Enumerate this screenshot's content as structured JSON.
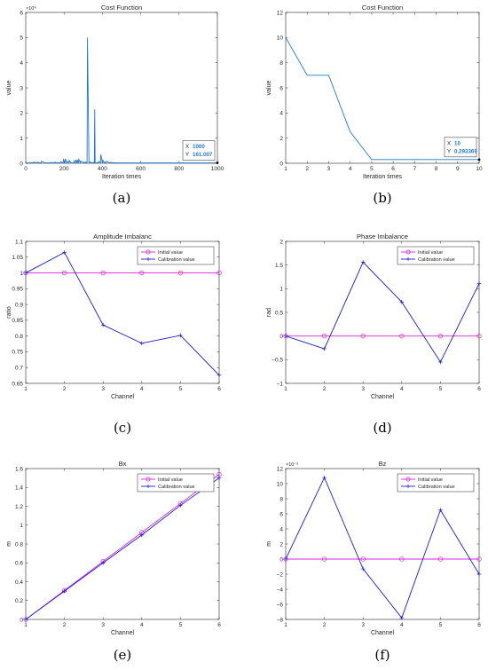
{
  "chart_data": [
    {
      "panel": "(a)",
      "type": "line",
      "title": "Cost Function",
      "xlabel": "Iteration times",
      "ylabel": "value",
      "xlim": [
        0,
        1000
      ],
      "ylim": [
        0,
        60000
      ],
      "y_exponent_label": "×10⁴",
      "xticks": [
        0,
        200,
        400,
        600,
        800,
        1000
      ],
      "yticks": [
        0,
        10000,
        20000,
        30000,
        40000,
        50000,
        60000
      ],
      "ytick_labels": [
        "0",
        "1",
        "2",
        "3",
        "4",
        "5",
        "6"
      ],
      "series": [
        {
          "color": "#1f77d4",
          "x": [
            0,
            20,
            22,
            40,
            42,
            60,
            62,
            80,
            82,
            100,
            102,
            130,
            132,
            150,
            152,
            160,
            162,
            180,
            182,
            195,
            197,
            205,
            207,
            215,
            217,
            225,
            227,
            235,
            240,
            250,
            252,
            260,
            262,
            268,
            270,
            275,
            277,
            285,
            287,
            305,
            307,
            310,
            312,
            320,
            322,
            330,
            332,
            340,
            342,
            350,
            352,
            358,
            360,
            362,
            364,
            370,
            372,
            380,
            382,
            390,
            392,
            400,
            402,
            410,
            412,
            420,
            422,
            440,
            442,
            460,
            462,
            500,
            520,
            540,
            600,
            700,
            800,
            900,
            1000
          ],
          "y": [
            161,
            161,
            300,
            161,
            500,
            161,
            400,
            161,
            800,
            161,
            200,
            161,
            300,
            161,
            500,
            161,
            250,
            161,
            600,
            161,
            1500,
            161,
            1800,
            161,
            700,
            161,
            1200,
            161,
            161,
            161,
            1000,
            161,
            1400,
            161,
            1100,
            161,
            1600,
            161,
            900,
            161,
            400,
            161,
            500,
            161,
            50000,
            161,
            600,
            161,
            400,
            161,
            300,
            161,
            21500,
            161,
            161,
            161,
            300,
            161,
            700,
            161,
            3500,
            161,
            1200,
            161,
            500,
            161,
            800,
            161,
            300,
            161,
            200,
            161,
            161,
            161,
            161,
            161,
            161,
            161,
            161
          ]
        }
      ],
      "datatip": {
        "x_label": "X",
        "x_value": "1000",
        "y_label": "Y",
        "y_value": "161.007"
      }
    },
    {
      "panel": "(b)",
      "type": "line",
      "title": "Cost Function",
      "xlabel": "Iteration times",
      "ylabel": "value",
      "xlim": [
        1,
        10
      ],
      "ylim": [
        0,
        12
      ],
      "xticks": [
        1,
        2,
        3,
        4,
        5,
        6,
        7,
        8,
        9,
        10
      ],
      "yticks": [
        0,
        2,
        4,
        6,
        8,
        10,
        12
      ],
      "series": [
        {
          "color": "#1f77d4",
          "x": [
            1,
            2,
            3,
            4,
            5,
            6,
            7,
            8,
            9,
            10
          ],
          "y": [
            10,
            7,
            7,
            2.5,
            0.293369,
            0.293369,
            0.293369,
            0.293369,
            0.293369,
            0.293369
          ]
        }
      ],
      "datatip": {
        "x_label": "X",
        "x_value": "10",
        "y_label": "Y",
        "y_value": "0.293369"
      }
    },
    {
      "panel": "(c)",
      "type": "line",
      "title": "Amplitude Imbalanc",
      "xlabel": "Channel",
      "ylabel": "ratio",
      "xlim": [
        1,
        6
      ],
      "ylim": [
        0.65,
        1.1
      ],
      "xticks": [
        1,
        2,
        3,
        4,
        5,
        6
      ],
      "yticks": [
        0.65,
        0.7,
        0.75,
        0.8,
        0.85,
        0.9,
        0.95,
        1,
        1.05,
        1.1
      ],
      "ytick_labels": [
        "0.65",
        "0.7",
        "0.75",
        "0.8",
        "0.85",
        "0.9",
        "0.95",
        "1",
        "1.05",
        "1.1"
      ],
      "legend": {
        "position": "top-right"
      },
      "categories": [
        1,
        2,
        3,
        4,
        5,
        6
      ],
      "series": [
        {
          "name": "Initial value",
          "color": "#e020e0",
          "marker": "circle",
          "values": [
            1,
            1,
            1,
            1,
            1,
            1
          ]
        },
        {
          "name": "Calibration value",
          "color": "#1a1ad6",
          "marker": "plus",
          "values": [
            1,
            1.065,
            0.835,
            0.777,
            0.802,
            0.676
          ]
        }
      ]
    },
    {
      "panel": "(d)",
      "type": "line",
      "title": "Phase Imbalance",
      "xlabel": "Channel",
      "ylabel": "rad",
      "xlim": [
        1,
        6
      ],
      "ylim": [
        -1,
        2
      ],
      "xticks": [
        1,
        2,
        3,
        4,
        5,
        6
      ],
      "yticks": [
        -1,
        -0.5,
        0,
        0.5,
        1,
        1.5,
        2
      ],
      "ytick_labels": [
        "−1",
        "−0.5",
        "0",
        "0.5",
        "1",
        "1.5",
        "2"
      ],
      "legend": {
        "position": "top-right"
      },
      "categories": [
        1,
        2,
        3,
        4,
        5,
        6
      ],
      "series": [
        {
          "name": "Initial value",
          "color": "#e020e0",
          "marker": "circle",
          "values": [
            0,
            0,
            0,
            0,
            0,
            0
          ]
        },
        {
          "name": "Calibration value",
          "color": "#1a1ad6",
          "marker": "plus",
          "values": [
            0,
            -0.27,
            1.56,
            0.72,
            -0.55,
            1.11
          ]
        }
      ]
    },
    {
      "panel": "(e)",
      "type": "line",
      "title": "Bx",
      "xlabel": "Channel",
      "ylabel": "m",
      "xlim": [
        1,
        6
      ],
      "ylim": [
        0,
        1.6
      ],
      "xticks": [
        1,
        2,
        3,
        4,
        5,
        6
      ],
      "yticks": [
        0,
        0.2,
        0.4,
        0.6,
        0.8,
        1,
        1.2,
        1.4,
        1.6
      ],
      "ytick_labels": [
        "0",
        "0.2",
        "0.4",
        "0.6",
        "0.8",
        "1",
        "1.2",
        "1.4",
        "1.6"
      ],
      "legend": {
        "position": "top-right"
      },
      "categories": [
        1,
        2,
        3,
        4,
        5,
        6
      ],
      "series": [
        {
          "name": "Initial value",
          "color": "#e020e0",
          "marker": "circle",
          "values": [
            0,
            0.3075,
            0.615,
            0.9225,
            1.23,
            1.5375
          ]
        },
        {
          "name": "Calibration value",
          "color": "#1a1ad6",
          "marker": "plus",
          "values": [
            0,
            0.3,
            0.6,
            0.895,
            1.21,
            1.5
          ]
        }
      ]
    },
    {
      "panel": "(f)",
      "type": "line",
      "title": "Bz",
      "xlabel": "Channel",
      "ylabel": "m",
      "xlim": [
        1,
        6
      ],
      "ylim": [
        -0.008,
        0.012
      ],
      "y_exponent_label": "×10⁻³",
      "xticks": [
        1,
        2,
        3,
        4,
        5,
        6
      ],
      "yticks": [
        -0.008,
        -0.006,
        -0.004,
        -0.002,
        0,
        0.002,
        0.004,
        0.006,
        0.008,
        0.01,
        0.012
      ],
      "ytick_labels": [
        "−8",
        "−6",
        "−4",
        "−2",
        "0",
        "2",
        "4",
        "6",
        "8",
        "10",
        "12"
      ],
      "legend": {
        "position": "top-right"
      },
      "categories": [
        1,
        2,
        3,
        4,
        5,
        6
      ],
      "series": [
        {
          "name": "Initial value",
          "color": "#e020e0",
          "marker": "circle",
          "values": [
            0,
            0,
            0,
            0,
            0,
            0
          ]
        },
        {
          "name": "Calibration value",
          "color": "#1a1ad6",
          "marker": "plus",
          "values": [
            0,
            0.0108,
            -0.0013,
            -0.0078,
            0.0065,
            -0.002
          ]
        }
      ]
    }
  ]
}
